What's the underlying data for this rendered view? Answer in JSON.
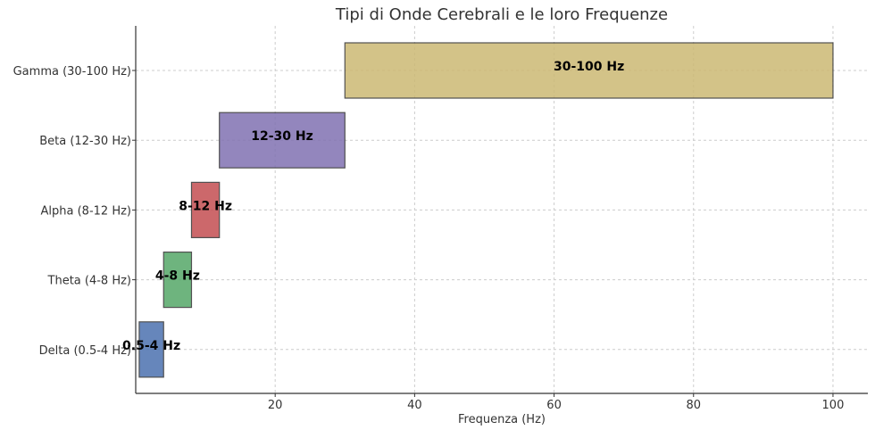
{
  "chart_data": {
    "type": "bar",
    "orientation": "horizontal",
    "title": "Tipi di Onde Cerebrali e le loro Frequenze",
    "xlabel": "Frequenza (Hz)",
    "ylabel": "",
    "xlim": [
      0,
      105
    ],
    "x_ticks": [
      20,
      40,
      60,
      80,
      100
    ],
    "grid": true,
    "categories": [
      "Delta (0.5-4 Hz)",
      "Theta (4-8 Hz)",
      "Alpha (8-12 Hz)",
      "Beta (12-30 Hz)",
      "Gamma (30-100 Hz)"
    ],
    "bars": [
      {
        "start": 0.5,
        "end": 4,
        "label": "0.5-4 Hz",
        "color": "#4c72b0"
      },
      {
        "start": 4,
        "end": 8,
        "label": "4-8 Hz",
        "color": "#55a868"
      },
      {
        "start": 8,
        "end": 12,
        "label": "8-12 Hz",
        "color": "#c44e52"
      },
      {
        "start": 12,
        "end": 30,
        "label": "12-30 Hz",
        "color": "#8172b2"
      },
      {
        "start": 30,
        "end": 100,
        "label": "30-100 Hz",
        "color": "#ccb974"
      }
    ]
  }
}
